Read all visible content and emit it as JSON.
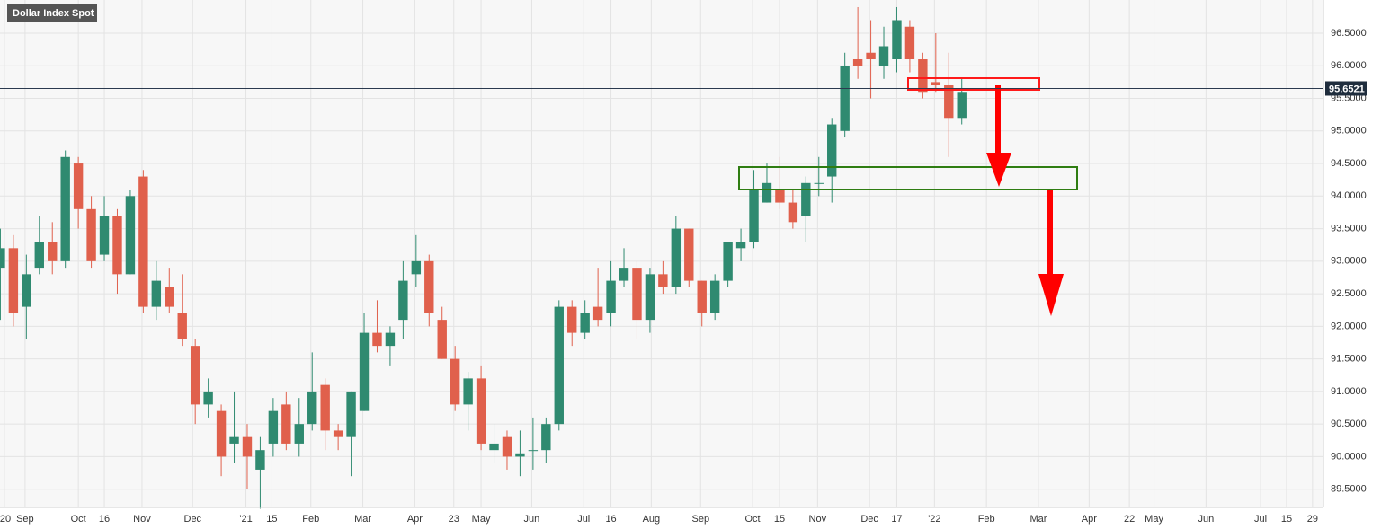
{
  "chart_data": {
    "type": "candlestick",
    "title": "Dollar Index Spot",
    "up_color": "#2f8a70",
    "down_color": "#e0604c",
    "open": [
      92.9,
      93.2,
      92.3,
      92.9,
      93.3,
      93.0,
      94.5,
      93.8,
      93.1,
      93.7,
      92.8,
      94.3,
      92.3,
      92.6,
      92.2,
      91.7,
      90.8,
      90.7,
      90.2,
      90.3,
      89.8,
      90.2,
      90.8,
      90.2,
      90.5,
      91.1,
      90.4,
      90.3,
      90.7,
      91.9,
      91.7,
      92.1,
      92.8,
      93.0,
      92.1,
      91.5,
      90.8,
      91.2,
      90.1,
      90.3,
      90.0,
      90.1,
      90.1,
      90.5,
      92.3,
      91.9,
      92.3,
      92.2,
      92.7,
      92.9,
      92.1,
      92.8,
      92.6,
      93.5,
      92.7,
      92.2,
      92.7,
      93.2,
      93.3,
      93.9,
      94.1,
      93.9,
      93.7,
      94.2,
      94.3,
      95.0,
      96.1,
      96.2,
      96.0,
      96.1,
      96.6,
      96.1,
      95.75,
      95.7,
      95.2
    ],
    "high": [
      93.5,
      93.4,
      93.1,
      93.7,
      93.6,
      94.7,
      94.6,
      94.0,
      94.0,
      93.8,
      94.1,
      94.4,
      93.0,
      92.9,
      92.8,
      91.8,
      91.2,
      90.8,
      91.0,
      90.5,
      90.3,
      90.9,
      91.0,
      90.9,
      91.6,
      91.2,
      90.5,
      91.0,
      92.2,
      92.4,
      92.0,
      93.0,
      93.4,
      93.1,
      92.3,
      91.7,
      91.3,
      91.4,
      90.5,
      90.4,
      90.4,
      90.6,
      90.6,
      92.4,
      92.4,
      92.4,
      92.9,
      93.0,
      93.2,
      93.0,
      92.9,
      93.0,
      93.7,
      93.5,
      92.7,
      92.8,
      93.3,
      93.5,
      94.4,
      94.5,
      94.6,
      94.1,
      94.3,
      94.6,
      95.2,
      96.2,
      96.9,
      96.7,
      96.6,
      96.9,
      96.7,
      96.2,
      96.5,
      96.2,
      95.8
    ],
    "low": [
      92.1,
      92.0,
      91.8,
      92.8,
      92.8,
      92.9,
      93.5,
      92.9,
      93.0,
      92.5,
      92.8,
      92.2,
      92.1,
      92.2,
      91.7,
      90.5,
      90.6,
      89.7,
      89.9,
      89.5,
      89.2,
      90.0,
      90.1,
      90.0,
      90.4,
      90.1,
      90.1,
      89.7,
      90.7,
      91.6,
      91.4,
      91.8,
      92.6,
      92.0,
      91.5,
      90.7,
      90.4,
      90.1,
      89.9,
      89.8,
      89.7,
      89.8,
      89.9,
      90.4,
      91.7,
      91.8,
      92.0,
      92.0,
      92.6,
      91.8,
      91.9,
      92.5,
      92.5,
      92.6,
      92.0,
      92.1,
      92.6,
      93.0,
      93.2,
      93.9,
      93.8,
      93.5,
      93.3,
      94.0,
      93.9,
      94.9,
      95.8,
      95.5,
      95.8,
      95.9,
      95.9,
      95.5,
      95.6,
      94.6,
      95.1
    ],
    "close": [
      93.2,
      92.2,
      92.8,
      93.3,
      93.0,
      94.6,
      93.8,
      93.0,
      93.7,
      92.8,
      94.0,
      92.3,
      92.7,
      92.3,
      91.8,
      90.8,
      91.0,
      90.0,
      90.3,
      90.0,
      90.1,
      90.7,
      90.2,
      90.5,
      91.0,
      90.4,
      90.3,
      91.0,
      91.9,
      91.7,
      91.9,
      92.7,
      93.0,
      92.2,
      91.5,
      90.8,
      91.2,
      90.2,
      90.2,
      90.0,
      90.05,
      90.1,
      90.5,
      92.3,
      91.9,
      92.2,
      92.1,
      92.7,
      92.9,
      92.1,
      92.8,
      92.6,
      93.5,
      92.7,
      92.2,
      92.7,
      93.3,
      93.3,
      94.1,
      94.2,
      93.9,
      93.6,
      94.2,
      94.2,
      95.1,
      96.0,
      96.0,
      96.1,
      96.3,
      96.7,
      96.1,
      95.6,
      95.7,
      95.2,
      95.6
    ],
    "last_price": 95.6521,
    "xlim": [
      -0.03,
      101.84
    ],
    "ylim": [
      89.22,
      97.01
    ],
    "grid": true,
    "xticks": [
      {
        "value": 0.31,
        "label": "'20"
      },
      {
        "value": 1.9,
        "label": "Sep"
      },
      {
        "value": 6.0,
        "label": "Oct"
      },
      {
        "value": 8.0,
        "label": "16"
      },
      {
        "value": 10.9,
        "label": "Nov"
      },
      {
        "value": 14.8,
        "label": "Dec"
      },
      {
        "value": 18.9,
        "label": "'21"
      },
      {
        "value": 20.9,
        "label": "15"
      },
      {
        "value": 23.9,
        "label": "Feb"
      },
      {
        "value": 27.9,
        "label": "Mar"
      },
      {
        "value": 31.9,
        "label": "Apr"
      },
      {
        "value": 34.9,
        "label": "23"
      },
      {
        "value": 37.0,
        "label": "May"
      },
      {
        "value": 40.9,
        "label": "Jun"
      },
      {
        "value": 44.9,
        "label": "Jul"
      },
      {
        "value": 47.0,
        "label": "16"
      },
      {
        "value": 50.1,
        "label": "Aug"
      },
      {
        "value": 53.9,
        "label": "Sep"
      },
      {
        "value": 57.9,
        "label": "Oct"
      },
      {
        "value": 59.97,
        "label": "15"
      },
      {
        "value": 62.9,
        "label": "Nov"
      },
      {
        "value": 66.9,
        "label": "Dec"
      },
      {
        "value": 69.0,
        "label": "17"
      },
      {
        "value": 71.9,
        "label": "'22"
      },
      {
        "value": 75.9,
        "label": "Feb"
      },
      {
        "value": 79.9,
        "label": "Mar"
      },
      {
        "value": 83.8,
        "label": "Apr"
      },
      {
        "value": 86.9,
        "label": "22"
      },
      {
        "value": 88.8,
        "label": "May"
      },
      {
        "value": 92.8,
        "label": "Jun"
      },
      {
        "value": 97.0,
        "label": "Jul"
      },
      {
        "value": 99.0,
        "label": "15"
      },
      {
        "value": 101.0,
        "label": "29"
      }
    ],
    "yticks": [
      {
        "value": 89.5,
        "label": "89.5000"
      },
      {
        "value": 90,
        "label": "90.0000"
      },
      {
        "value": 90.5,
        "label": "90.5000"
      },
      {
        "value": 91,
        "label": "91.0000"
      },
      {
        "value": 91.5,
        "label": "91.5000"
      },
      {
        "value": 92,
        "label": "92.0000"
      },
      {
        "value": 92.5,
        "label": "92.5000"
      },
      {
        "value": 93,
        "label": "93.0000"
      },
      {
        "value": 93.5,
        "label": "93.5000"
      },
      {
        "value": 94,
        "label": "94.0000"
      },
      {
        "value": 94.5,
        "label": "94.5000"
      },
      {
        "value": 95,
        "label": "95.0000"
      },
      {
        "value": 95.5,
        "label": "95.5000"
      },
      {
        "value": 96,
        "label": "96.0000"
      },
      {
        "value": 96.5,
        "label": "96.5000"
      }
    ]
  }
}
